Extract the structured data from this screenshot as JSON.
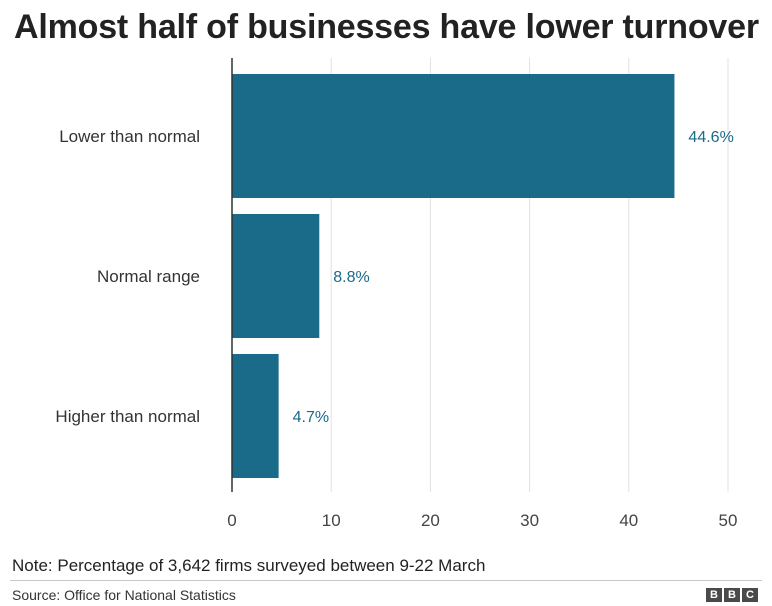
{
  "chart_data": {
    "type": "bar",
    "orientation": "horizontal",
    "title": "Almost half of businesses have lower turnover",
    "categories": [
      "Lower than normal",
      "Normal range",
      "Higher than normal"
    ],
    "values": [
      44.6,
      8.8,
      4.7
    ],
    "value_labels": [
      "44.6%",
      "8.8%",
      "4.7%"
    ],
    "xlim": [
      0,
      50
    ],
    "xticks": [
      0,
      10,
      20,
      30,
      40,
      50
    ],
    "grid": true,
    "xlabel": "",
    "ylabel": "",
    "colors": {
      "bar": "#1a6a8a",
      "value_label": "#1a6a8a",
      "grid": "#e0e0e0"
    }
  },
  "footer": {
    "note": "Note: Percentage of 3,642 firms surveyed between 9-22 March",
    "source": "Source: Office for National Statistics",
    "logo_letters": [
      "B",
      "B",
      "C"
    ]
  }
}
